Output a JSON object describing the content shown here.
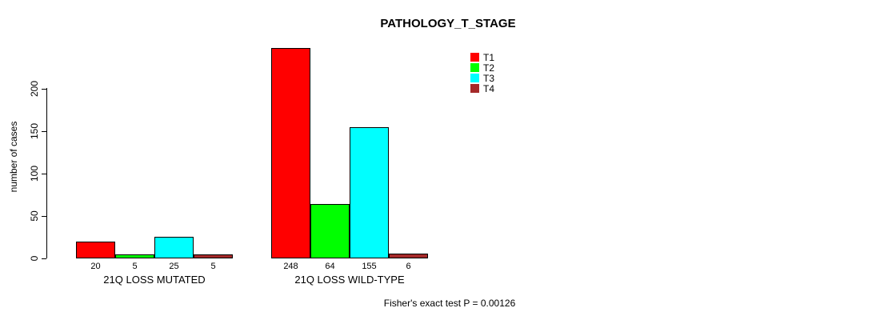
{
  "title": "PATHOLOGY_T_STAGE",
  "footer": "Fisher's exact test P = 0.00126",
  "chart_data": {
    "type": "bar",
    "title": "PATHOLOGY_T_STAGE",
    "xlabel": "",
    "ylabel": "number of cases",
    "ylim": [
      0,
      200
    ],
    "yticks": [
      0,
      50,
      100,
      150,
      200
    ],
    "grid": false,
    "legend_position": "top-right",
    "categories": [
      "21Q LOSS MUTATED",
      "21Q LOSS WILD-TYPE"
    ],
    "series": [
      {
        "name": "T1",
        "color": "#ff0000",
        "values": [
          20,
          248
        ]
      },
      {
        "name": "T2",
        "color": "#00ff00",
        "values": [
          5,
          64
        ]
      },
      {
        "name": "T3",
        "color": "#00ffff",
        "values": [
          25,
          155
        ]
      },
      {
        "name": "T4",
        "color": "#a52a2a",
        "values": [
          5,
          6
        ]
      }
    ],
    "bar_value_labels": [
      [
        "20",
        "5",
        "25",
        "5"
      ],
      [
        "248",
        "64",
        "155",
        "6"
      ]
    ],
    "annotation": "Fisher's exact test P = 0.00126"
  }
}
